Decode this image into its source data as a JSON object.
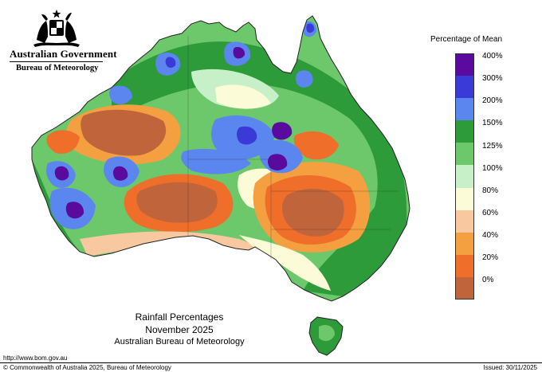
{
  "header": {
    "gov_name": "Australian Government",
    "bureau_name": "Bureau of Meteorology"
  },
  "legend": {
    "title": "Percentage of Mean",
    "items": [
      {
        "label": "400%",
        "color": "#5a0a9e"
      },
      {
        "label": "300%",
        "color": "#3a3ad8"
      },
      {
        "label": "200%",
        "color": "#5b86f0"
      },
      {
        "label": "150%",
        "color": "#2e9b3a"
      },
      {
        "label": "125%",
        "color": "#6cc86a"
      },
      {
        "label": "100%",
        "color": "#c8f0c8"
      },
      {
        "label": "80%",
        "color": "#fbfbd8"
      },
      {
        "label": "60%",
        "color": "#f8c8a0"
      },
      {
        "label": "40%",
        "color": "#f4a040"
      },
      {
        "label": "20%",
        "color": "#ee6e2a"
      },
      {
        "label": "0%",
        "color": "#c0643c"
      }
    ]
  },
  "map_title": {
    "line1": "Rainfall Percentages",
    "line2": "November 2025",
    "line3": "Australian Bureau of Meteorology"
  },
  "footer": {
    "url": "http://www.bom.gov.au",
    "copyright": "© Commonwealth of Australia 2025, Bureau of Meteorology",
    "issued": "Issued: 30/11/2025"
  }
}
